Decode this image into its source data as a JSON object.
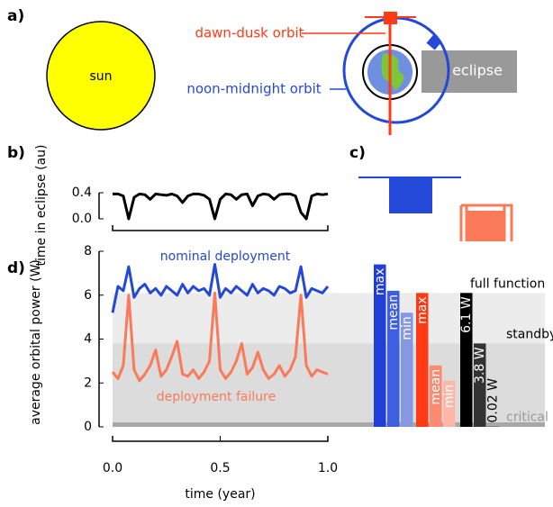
{
  "panels": {
    "a": {
      "label": "a)",
      "sun": "sun",
      "dawn_dusk": "dawn-dusk orbit",
      "noon_midnight": "noon-midnight orbit",
      "eclipse": "eclipse"
    },
    "c": {
      "label": "c)"
    }
  },
  "chart_data": [
    {
      "type": "line",
      "label": "b)",
      "ylabel": "time in eclipse (au)",
      "x": [
        0,
        0.025,
        0.05,
        0.075,
        0.1,
        0.125,
        0.15,
        0.175,
        0.2,
        0.225,
        0.25,
        0.275,
        0.3,
        0.325,
        0.35,
        0.375,
        0.4,
        0.425,
        0.45,
        0.475,
        0.5,
        0.525,
        0.55,
        0.575,
        0.6,
        0.625,
        0.65,
        0.675,
        0.7,
        0.725,
        0.75,
        0.775,
        0.8,
        0.825,
        0.85,
        0.875,
        0.9,
        0.925,
        0.95,
        0.975,
        1
      ],
      "series": [
        {
          "color": "#000000",
          "values": [
            0.38,
            0.38,
            0.35,
            0.0,
            0.33,
            0.38,
            0.37,
            0.3,
            0.38,
            0.37,
            0.36,
            0.38,
            0.35,
            0.25,
            0.35,
            0.38,
            0.38,
            0.36,
            0.3,
            0.0,
            0.3,
            0.38,
            0.37,
            0.3,
            0.37,
            0.38,
            0.2,
            0.35,
            0.38,
            0.37,
            0.3,
            0.37,
            0.38,
            0.38,
            0.35,
            0.1,
            0.0,
            0.35,
            0.38,
            0.37,
            0.38
          ]
        }
      ],
      "xlim": [
        0,
        1
      ],
      "ylim": [
        0,
        0.4
      ],
      "yticks": [
        {
          "value": 0,
          "label": "0.0"
        },
        {
          "value": 0.4,
          "label": "0.4"
        }
      ]
    },
    {
      "type": "line",
      "label": "d)",
      "ylabel": "average orbital power (W)",
      "xlabel": "time (year)",
      "x": [
        0,
        0.025,
        0.05,
        0.075,
        0.1,
        0.125,
        0.15,
        0.175,
        0.2,
        0.225,
        0.25,
        0.275,
        0.3,
        0.325,
        0.35,
        0.375,
        0.4,
        0.425,
        0.45,
        0.475,
        0.5,
        0.525,
        0.55,
        0.575,
        0.6,
        0.625,
        0.65,
        0.675,
        0.7,
        0.725,
        0.75,
        0.775,
        0.8,
        0.825,
        0.85,
        0.875,
        0.9,
        0.925,
        0.95,
        0.975,
        1
      ],
      "series": [
        {
          "name": "nominal deployment",
          "color": "#2448d8",
          "values": [
            5.2,
            6.4,
            6.2,
            7.3,
            5.9,
            6.3,
            6.5,
            6.1,
            6.3,
            6.0,
            6.4,
            6.2,
            6.0,
            6.5,
            6.1,
            6.4,
            6.2,
            6.3,
            6.0,
            7.4,
            5.9,
            6.3,
            6.1,
            6.4,
            6.2,
            6.0,
            6.5,
            6.1,
            6.3,
            6.2,
            6.0,
            6.4,
            6.3,
            6.1,
            6.2,
            7.3,
            5.9,
            6.3,
            6.2,
            6.1,
            6.4
          ]
        },
        {
          "name": "deployment failure",
          "color": "#fa7a5a",
          "values": [
            2.5,
            2.2,
            2.8,
            6.0,
            2.6,
            2.1,
            2.4,
            2.8,
            3.5,
            2.3,
            2.6,
            3.2,
            3.9,
            2.4,
            2.3,
            2.6,
            2.2,
            2.5,
            3.0,
            6.1,
            2.6,
            2.2,
            2.5,
            3.0,
            3.8,
            2.4,
            2.7,
            3.4,
            2.6,
            2.2,
            2.4,
            2.8,
            2.3,
            2.6,
            3.2,
            6.0,
            2.8,
            2.3,
            2.6,
            2.5,
            2.4
          ]
        }
      ],
      "xlim": [
        0,
        1
      ],
      "xticks": [
        {
          "value": 0,
          "label": "0.0"
        },
        {
          "value": 0.5,
          "label": "0.5"
        },
        {
          "value": 1,
          "label": "1.0"
        }
      ],
      "ylim": [
        0,
        8
      ],
      "yticks": [
        0,
        2,
        4,
        6,
        8
      ]
    },
    {
      "type": "bar",
      "categories": [
        "max",
        "mean",
        "min",
        "max",
        "mean",
        "min",
        null,
        null,
        null
      ],
      "values": [
        7.4,
        6.2,
        5.2,
        6.1,
        2.8,
        2.1,
        6.1,
        3.8,
        0.02
      ],
      "value_labels": [
        null,
        null,
        null,
        null,
        null,
        null,
        "6.1 W",
        "3.8 W",
        "0.02 W"
      ],
      "colors": [
        "#1f3fd8",
        "#3d5fe0",
        "#8598e4",
        "#ff3a14",
        "#ff8a70",
        "#ffb8a8",
        "#000000",
        "#333333",
        "#555555"
      ],
      "ylim": [
        0,
        8
      ],
      "levels": [
        {
          "name": "full function",
          "value": 6.1
        },
        {
          "name": "standby",
          "value": 3.8
        },
        {
          "name": "critical",
          "value": 0.02
        }
      ]
    }
  ]
}
